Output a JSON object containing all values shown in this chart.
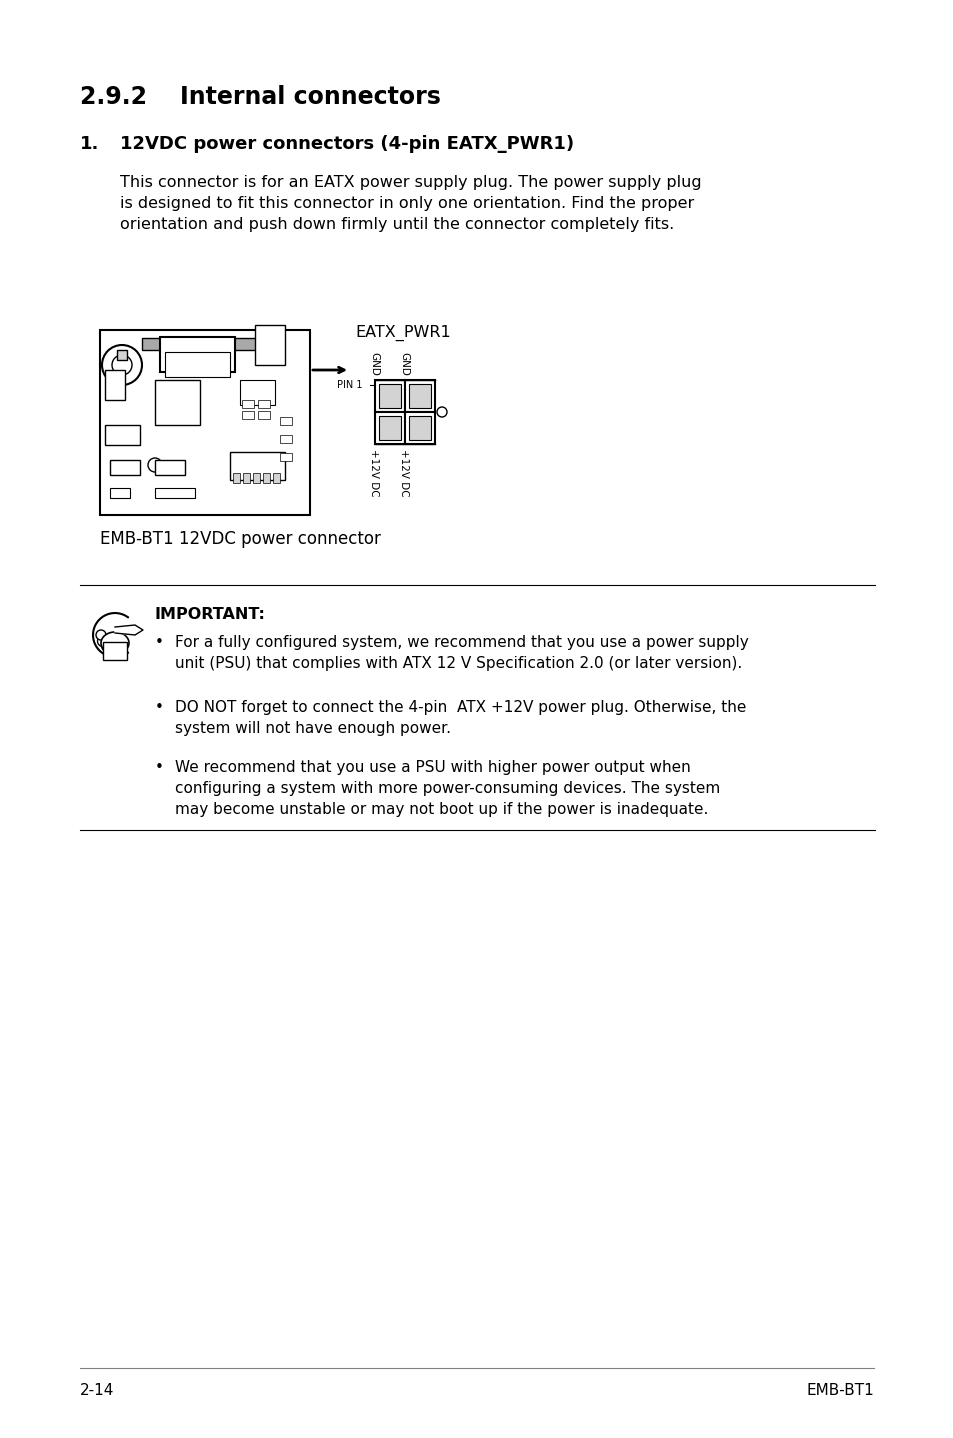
{
  "page_title": "2.9.2    Internal connectors",
  "section_num": "1.",
  "section_title": "12VDC power connectors (4-pin EATX_PWR1)",
  "body_text": "This connector is for an EATX power supply plug. The power supply plug\nis designed to fit this connector in only one orientation. Find the proper\norientation and push down firmly until the connector completely fits.",
  "figure_caption": "EMB-BT1 12VDC power connector",
  "figure_label": "EATX_PWR1",
  "pin_label": "PIN 1",
  "pin_labels_top": [
    "GND",
    "GND"
  ],
  "pin_labels_bottom": [
    "+12V DC",
    "+12V DC"
  ],
  "important_title": "IMPORTANT:",
  "bullet1": "For a fully configured system, we recommend that you use a power supply\nunit (PSU) that complies with ATX 12 V Specification 2.0 (or later version).",
  "bullet2": "DO NOT forget to connect the 4-pin  ATX +12V power plug. Otherwise, the\nsystem will not have enough power.",
  "bullet3": "We recommend that you use a PSU with higher power output when\nconfiguring a system with more power-consuming devices. The system\nmay become unstable or may not boot up if the power is inadequate.",
  "footer_left": "2-14",
  "footer_right": "EMB-BT1",
  "bg_color": "#ffffff",
  "text_color": "#000000"
}
